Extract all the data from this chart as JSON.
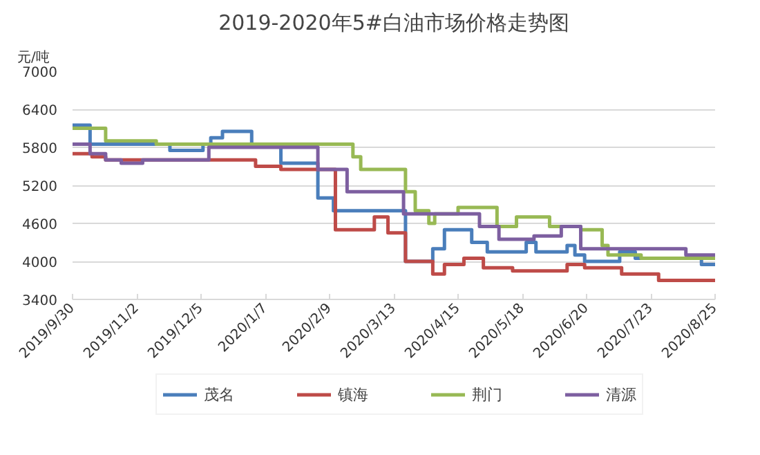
{
  "chart_data": {
    "type": "step",
    "title": "2019-2020年5#白油市场价格走势图",
    "ylabel": "元/吨",
    "xlim": [
      "2019-09-30",
      "2020-08-25"
    ],
    "xticks": [
      {
        "value": "2019-09-30",
        "label": "2019/9/30"
      },
      {
        "value": "2019-11-02",
        "label": "2019/11/2"
      },
      {
        "value": "2019-12-05",
        "label": "2019/12/5"
      },
      {
        "value": "2020-01-07",
        "label": "2020/1/7"
      },
      {
        "value": "2020-02-09",
        "label": "2020/2/9"
      },
      {
        "value": "2020-03-13",
        "label": "2020/3/13"
      },
      {
        "value": "2020-04-15",
        "label": "2020/4/15"
      },
      {
        "value": "2020-05-18",
        "label": "2020/5/18"
      },
      {
        "value": "2020-06-20",
        "label": "2020/6/20"
      },
      {
        "value": "2020-07-23",
        "label": "2020/7/23"
      },
      {
        "value": "2020-08-25",
        "label": "2020/8/25"
      }
    ],
    "ylim": [
      3400,
      7000
    ],
    "yticks": [
      3400,
      4000,
      4600,
      5200,
      5800,
      6400,
      7000
    ],
    "grid": "y",
    "legend": "bottom",
    "line_style": "solid",
    "marker": "none",
    "series": [
      {
        "name": "茂名",
        "color": "#4a7ebb",
        "x": [
          "2019-09-30",
          "2019-10-09",
          "2019-11-19",
          "2019-12-06",
          "2019-12-10",
          "2019-12-16",
          "2019-12-31",
          "2020-01-15",
          "2020-02-03",
          "2020-02-11",
          "2020-03-19",
          "2020-04-02",
          "2020-04-08",
          "2020-04-22",
          "2020-04-30",
          "2020-05-20",
          "2020-05-25",
          "2020-06-10",
          "2020-06-14",
          "2020-06-19",
          "2020-07-07",
          "2020-07-15",
          "2020-08-18",
          "2020-08-25"
        ],
        "values": [
          6150,
          5850,
          5750,
          5850,
          5950,
          6050,
          5850,
          5550,
          5000,
          4800,
          4000,
          4200,
          4500,
          4300,
          4150,
          4300,
          4150,
          4250,
          4100,
          4000,
          4150,
          4050,
          3950,
          3950
        ]
      },
      {
        "name": "镇海",
        "color": "#be4b48",
        "x": [
          "2019-09-30",
          "2019-10-10",
          "2019-10-17",
          "2020-01-02",
          "2020-01-15",
          "2020-02-12",
          "2020-03-03",
          "2020-03-10",
          "2020-03-19",
          "2020-04-02",
          "2020-04-08",
          "2020-04-18",
          "2020-04-28",
          "2020-05-13",
          "2020-06-10",
          "2020-06-19",
          "2020-07-08",
          "2020-07-27",
          "2020-08-25"
        ],
        "values": [
          5700,
          5650,
          5600,
          5500,
          5450,
          4500,
          4700,
          4450,
          4000,
          3800,
          3950,
          4050,
          3900,
          3850,
          3950,
          3900,
          3800,
          3700,
          3700
        ]
      },
      {
        "name": "荆门",
        "color": "#98b954",
        "x": [
          "2019-09-30",
          "2019-10-17",
          "2019-11-12",
          "2020-02-21",
          "2020-02-25",
          "2020-03-19",
          "2020-03-24",
          "2020-03-31",
          "2020-04-03",
          "2020-04-15",
          "2020-05-05",
          "2020-05-15",
          "2020-06-01",
          "2020-06-17",
          "2020-06-28",
          "2020-07-01",
          "2020-07-18",
          "2020-08-25"
        ],
        "values": [
          6100,
          5900,
          5850,
          5650,
          5450,
          5100,
          4800,
          4600,
          4750,
          4850,
          4550,
          4700,
          4550,
          4500,
          4250,
          4100,
          4050,
          4050
        ]
      },
      {
        "name": "清源",
        "color": "#7d5fa0",
        "x": [
          "2019-09-30",
          "2019-10-09",
          "2019-10-17",
          "2019-10-25",
          "2019-11-05",
          "2019-12-09",
          "2020-02-03",
          "2020-02-18",
          "2020-03-18",
          "2020-04-26",
          "2020-05-06",
          "2020-05-24",
          "2020-06-07",
          "2020-06-17",
          "2020-08-10",
          "2020-08-25"
        ],
        "values": [
          5850,
          5700,
          5600,
          5550,
          5600,
          5800,
          5450,
          5100,
          4750,
          4550,
          4350,
          4400,
          4550,
          4200,
          4100,
          4100
        ]
      }
    ]
  }
}
